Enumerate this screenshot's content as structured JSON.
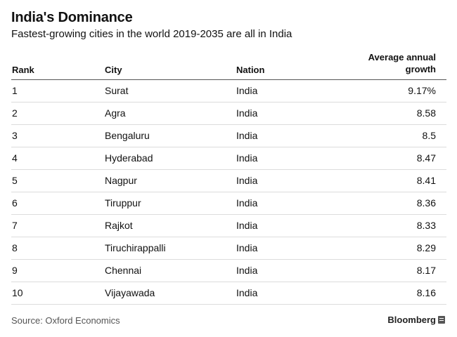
{
  "title": "India's Dominance",
  "subtitle": "Fastest-growing cities in the world 2019-2035 are all in India",
  "chart_data": {
    "type": "table",
    "columns": [
      "Rank",
      "City",
      "Nation",
      "Average annual growth"
    ],
    "rows": [
      {
        "rank": "1",
        "city": "Surat",
        "nation": "India",
        "growth": "9.17%"
      },
      {
        "rank": "2",
        "city": "Agra",
        "nation": "India",
        "growth": "8.58"
      },
      {
        "rank": "3",
        "city": "Bengaluru",
        "nation": "India",
        "growth": "8.5"
      },
      {
        "rank": "4",
        "city": "Hyderabad",
        "nation": "India",
        "growth": "8.47"
      },
      {
        "rank": "5",
        "city": "Nagpur",
        "nation": "India",
        "growth": "8.41"
      },
      {
        "rank": "6",
        "city": "Tiruppur",
        "nation": "India",
        "growth": "8.36"
      },
      {
        "rank": "7",
        "city": "Rajkot",
        "nation": "India",
        "growth": "8.33"
      },
      {
        "rank": "8",
        "city": "Tiruchirappalli",
        "nation": "India",
        "growth": "8.29"
      },
      {
        "rank": "9",
        "city": "Chennai",
        "nation": "India",
        "growth": "8.17"
      },
      {
        "rank": "10",
        "city": "Vijayawada",
        "nation": "India",
        "growth": "8.16"
      }
    ]
  },
  "source": "Source: Oxford Economics",
  "brand": "Bloomberg",
  "brand_icon": "bloomberg-terminal-icon"
}
